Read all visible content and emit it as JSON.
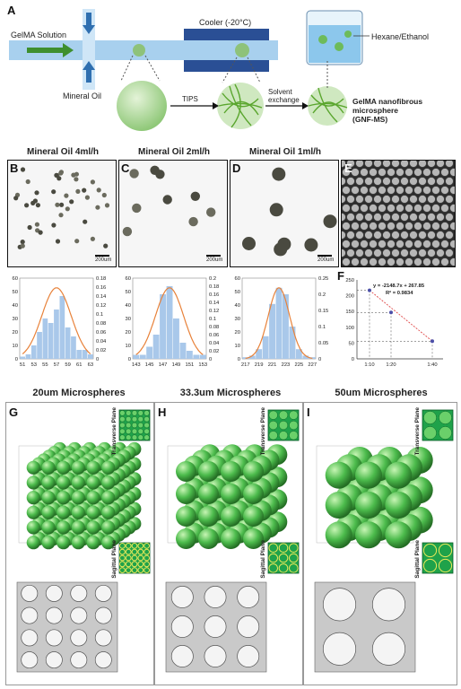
{
  "panel_letters": {
    "a": "A",
    "b": "B",
    "c": "C",
    "d": "D",
    "e": "E",
    "f": "F",
    "g": "G",
    "h": "H",
    "i": "I"
  },
  "schematic": {
    "gelma_solution": "GelMA Solution",
    "mineral_oil": "Mineral Oil",
    "cooler": "Cooler (-20°C)",
    "hexane_ethanol": "Hexane/Ethanol",
    "tips": "TIPS",
    "solvent_exchange": "Solvent\nexchange",
    "product_line1": "GelMA nanofibrous",
    "product_line2": "microsphere",
    "product_line3": "(GNF-MS)"
  },
  "micrographs": [
    {
      "title": "Mineral Oil  4ml/h",
      "scale": "200um"
    },
    {
      "title": "Mineral Oil  2ml/h",
      "scale": "200um"
    },
    {
      "title": "Mineral Oil  1ml/h",
      "scale": "200um"
    }
  ],
  "chart_data": [
    {
      "type": "bar",
      "categories": [
        "51",
        "52",
        "53",
        "54",
        "55",
        "56",
        "57",
        "58",
        "59",
        "60",
        "61",
        "62",
        "63"
      ],
      "x_tick_labels": [
        "51",
        "53",
        "55",
        "57",
        "59",
        "61",
        "63"
      ],
      "values": [
        0.005,
        0.01,
        0.03,
        0.06,
        0.09,
        0.08,
        0.11,
        0.14,
        0.07,
        0.05,
        0.02,
        0.02,
        0.01
      ],
      "ylim": [
        0,
        0.18
      ],
      "y_ticks": [
        "0",
        "0.02",
        "0.04",
        "0.06",
        "0.08",
        "0.1",
        "0.12",
        "0.14",
        "0.16",
        "0.18"
      ],
      "left_y_ticks": [
        "0",
        "10",
        "20",
        "30",
        "40",
        "50",
        "60"
      ],
      "fit": {
        "mean": 57,
        "sd": 2.6
      }
    },
    {
      "type": "bar",
      "categories": [
        "143",
        "144",
        "145",
        "146",
        "147",
        "148",
        "149",
        "150",
        "151",
        "152",
        "153"
      ],
      "x_tick_labels": [
        "143",
        "145",
        "147",
        "149",
        "151",
        "153"
      ],
      "values": [
        0.01,
        0.01,
        0.03,
        0.06,
        0.16,
        0.18,
        0.1,
        0.04,
        0.02,
        0.01,
        0.01
      ],
      "ylim": [
        0,
        0.2
      ],
      "y_ticks": [
        "0",
        "0.02",
        "0.04",
        "0.06",
        "0.08",
        "0.1",
        "0.12",
        "0.14",
        "0.16",
        "0.18",
        "0.2"
      ],
      "left_y_ticks": [
        "0",
        "10",
        "20",
        "30",
        "40",
        "50",
        "60"
      ],
      "fit": {
        "mean": 148,
        "sd": 2.1
      }
    },
    {
      "type": "bar",
      "categories": [
        "217",
        "218",
        "219",
        "220",
        "221",
        "222",
        "223",
        "224",
        "225",
        "226",
        "227"
      ],
      "x_tick_labels": [
        "217",
        "219",
        "221",
        "223",
        "225",
        "227"
      ],
      "values": [
        0.005,
        0.01,
        0.03,
        0.07,
        0.17,
        0.22,
        0.2,
        0.1,
        0.03,
        0.01,
        0.005
      ],
      "ylim": [
        0,
        0.25
      ],
      "y_ticks": [
        "0",
        "0.05",
        "0.1",
        "0.15",
        "0.2",
        "0.25"
      ],
      "left_y_ticks": [
        "0",
        "10",
        "20",
        "30",
        "40",
        "50",
        "60"
      ],
      "fit": {
        "mean": 222,
        "sd": 1.6
      }
    },
    {
      "type": "scatter",
      "categories": [
        "1:10",
        "1:20",
        "1:40"
      ],
      "values": [
        217,
        147,
        56
      ],
      "ylim": [
        0,
        250
      ],
      "y_ticks": [
        "0",
        "50",
        "100",
        "150",
        "200",
        "250"
      ],
      "equation": "y = -2148.7x + 267.85",
      "r2": "R² = 0.9834"
    }
  ],
  "spheres": {
    "g_title": "20um Microspheres",
    "h_title": "33.3um Microspheres",
    "i_title": "50um Microspheres",
    "transverse": "Transverse Plane",
    "sagittal": "Sagittal Plane"
  },
  "colors": {
    "bar": "#a9c8ea",
    "fit": "#e8823a",
    "sphere": "#4cbb4c",
    "flow": "#a8d0ee",
    "cooler": "#2a4f95"
  }
}
